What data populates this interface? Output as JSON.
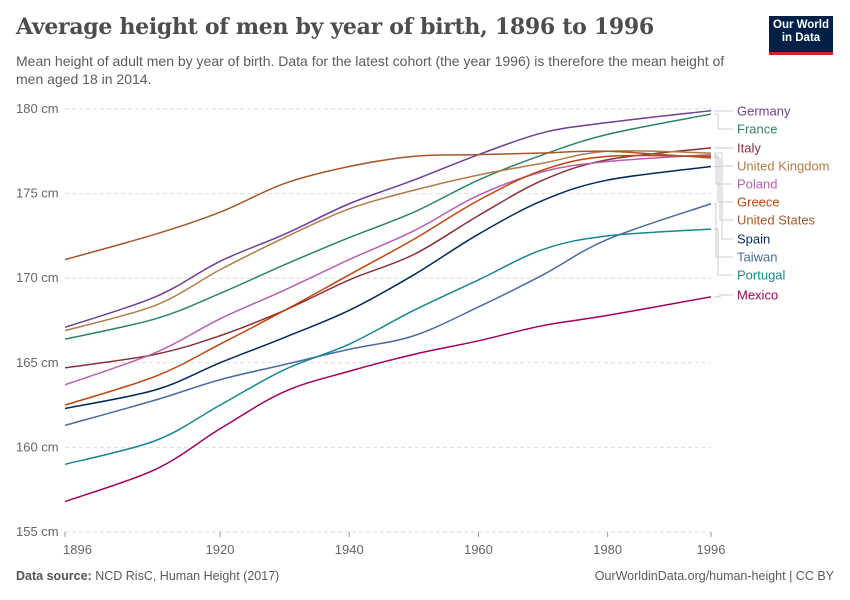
{
  "header": {
    "title": "Average height of men by year of birth, 1896 to 1996",
    "subtitle": "Mean height of adult men by year of birth. Data for the latest cohort (the year 1996) is therefore the mean height of men aged 18 in 2014.",
    "logo_text": "Our World in Data"
  },
  "footer": {
    "source_label": "Data source:",
    "source": "NCD RisC, Human Height (2017)",
    "url_license": "OurWorldinData.org/human-height | CC BY"
  },
  "chart_data": {
    "type": "line",
    "title": "Average height of men by year of birth, 1896 to 1996",
    "x_ticks": [
      "1896",
      "1920",
      "1940",
      "1960",
      "1980",
      "1996"
    ],
    "y_ticks": [
      "155 cm",
      "160 cm",
      "165 cm",
      "170 cm",
      "175 cm",
      "180 cm"
    ],
    "y_tick_values": [
      155,
      160,
      165,
      170,
      175,
      180
    ],
    "xlim": [
      1896,
      1996
    ],
    "ylim": [
      155,
      180
    ],
    "grid": "horizontal dashed",
    "legend": "right, labels at line ends",
    "x": [
      1896,
      1910,
      1920,
      1930,
      1940,
      1950,
      1960,
      1970,
      1980,
      1996
    ],
    "series": [
      {
        "name": "Germany",
        "color": "#6d3e91",
        "values": [
          167.1,
          168.9,
          171.0,
          172.6,
          174.4,
          175.8,
          177.3,
          178.6,
          179.2,
          179.9
        ]
      },
      {
        "name": "France",
        "color": "#2c8465",
        "values": [
          166.4,
          167.6,
          169.1,
          170.8,
          172.4,
          173.9,
          175.8,
          177.3,
          178.5,
          179.7
        ]
      },
      {
        "name": "Italy",
        "color": "#883039",
        "values": [
          164.7,
          165.5,
          166.6,
          168.1,
          169.9,
          171.4,
          173.7,
          175.8,
          177.0,
          177.7
        ]
      },
      {
        "name": "United Kingdom",
        "color": "#b07c46",
        "values": [
          166.9,
          168.4,
          170.5,
          172.4,
          174.1,
          175.2,
          176.1,
          176.8,
          177.5,
          177.4
        ]
      },
      {
        "name": "Poland",
        "color": "#b560b0",
        "values": [
          163.7,
          165.6,
          167.6,
          169.3,
          171.1,
          172.8,
          174.9,
          176.3,
          176.9,
          177.3
        ]
      },
      {
        "name": "Greece",
        "color": "#c0440e",
        "values": [
          162.5,
          164.2,
          166.1,
          168.1,
          170.2,
          172.3,
          174.6,
          176.4,
          177.2,
          177.2
        ]
      },
      {
        "name": "United States",
        "color": "#a4582a",
        "values": [
          171.1,
          172.6,
          173.9,
          175.6,
          176.6,
          177.2,
          177.3,
          177.4,
          177.5,
          177.1
        ]
      },
      {
        "name": "Spain",
        "color": "#00295b",
        "values": [
          162.3,
          163.4,
          165.0,
          166.5,
          168.1,
          170.2,
          172.6,
          174.6,
          175.8,
          176.6
        ]
      },
      {
        "name": "Taiwan",
        "color": "#4c6a9c",
        "values": [
          161.3,
          162.8,
          164.0,
          164.9,
          165.8,
          166.6,
          168.3,
          170.2,
          172.3,
          174.4
        ]
      },
      {
        "name": "Portugal",
        "color": "#18868f",
        "values": [
          159.0,
          160.4,
          162.5,
          164.6,
          166.1,
          168.1,
          169.9,
          171.7,
          172.5,
          172.9
        ]
      },
      {
        "name": "Mexico",
        "color": "#a2005c",
        "values": [
          156.8,
          158.7,
          161.1,
          163.3,
          164.5,
          165.5,
          166.3,
          167.2,
          167.8,
          168.9
        ]
      }
    ]
  }
}
